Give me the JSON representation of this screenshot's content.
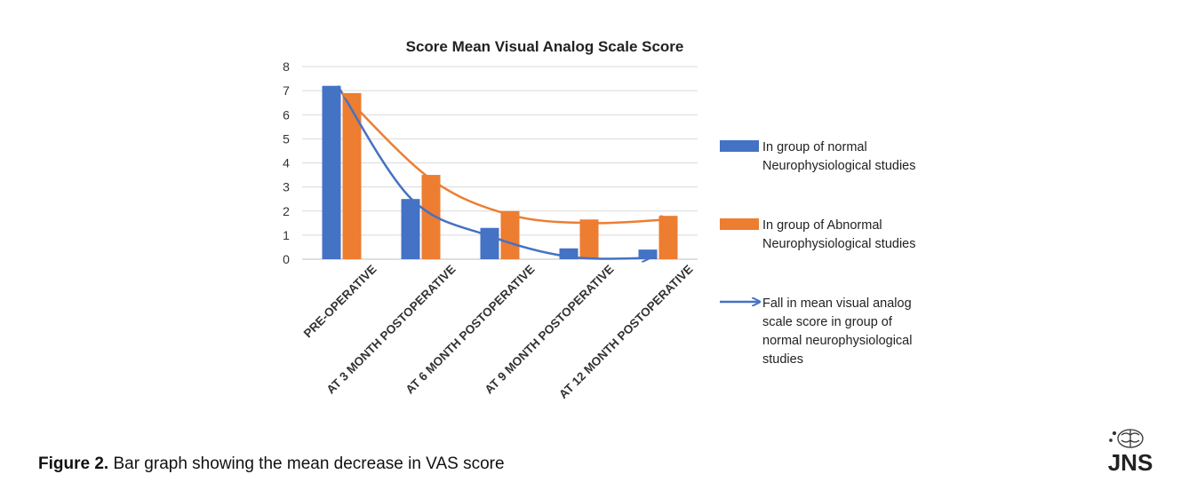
{
  "chart_data": {
    "type": "bar",
    "title": "Score Mean Visual Analog Scale Score",
    "categories": [
      "PRE-OPERATIVE",
      "AT 3 MONTH POSTOPERATIVE",
      "AT 6 MONTH POSTOPERATIVE",
      "AT 9 MONTH POSTOPERATIVE",
      "AT 12 MONTH POSTOPERATIVE"
    ],
    "series": [
      {
        "name": "In group of normal Neurophysiological studies",
        "legend_lines": [
          "In group of normal",
          "Neurophysiological studies"
        ],
        "color": "#4472C4",
        "values": [
          7.2,
          2.5,
          1.3,
          0.45,
          0.4
        ]
      },
      {
        "name": "In group of Abnormal Neurophysiological studies",
        "legend_lines": [
          "In group of Abnormal",
          "Neurophysiological studies"
        ],
        "color": "#ED7D31",
        "values": [
          6.9,
          3.5,
          2.0,
          1.65,
          1.8
        ]
      }
    ],
    "trend_arrows": [
      {
        "series": "normal",
        "color": "#4472C4"
      },
      {
        "series": "abnormal",
        "color": "#ED7D31"
      }
    ],
    "arrow_legend": {
      "color": "#4472C4",
      "lines": [
        "Fall in mean visual analog",
        "scale score in group of",
        "normal neurophysiological",
        "studies"
      ]
    },
    "y_ticks": [
      0,
      1,
      2,
      3,
      4,
      5,
      6,
      7,
      8
    ],
    "ylim": [
      0,
      8
    ],
    "grid": true,
    "xlabel": "",
    "ylabel": "",
    "legend_placement": "right"
  },
  "caption": {
    "label": "Figure 2.",
    "text": " Bar graph showing the mean decrease in VAS score"
  },
  "logo": {
    "text": "JNS"
  }
}
